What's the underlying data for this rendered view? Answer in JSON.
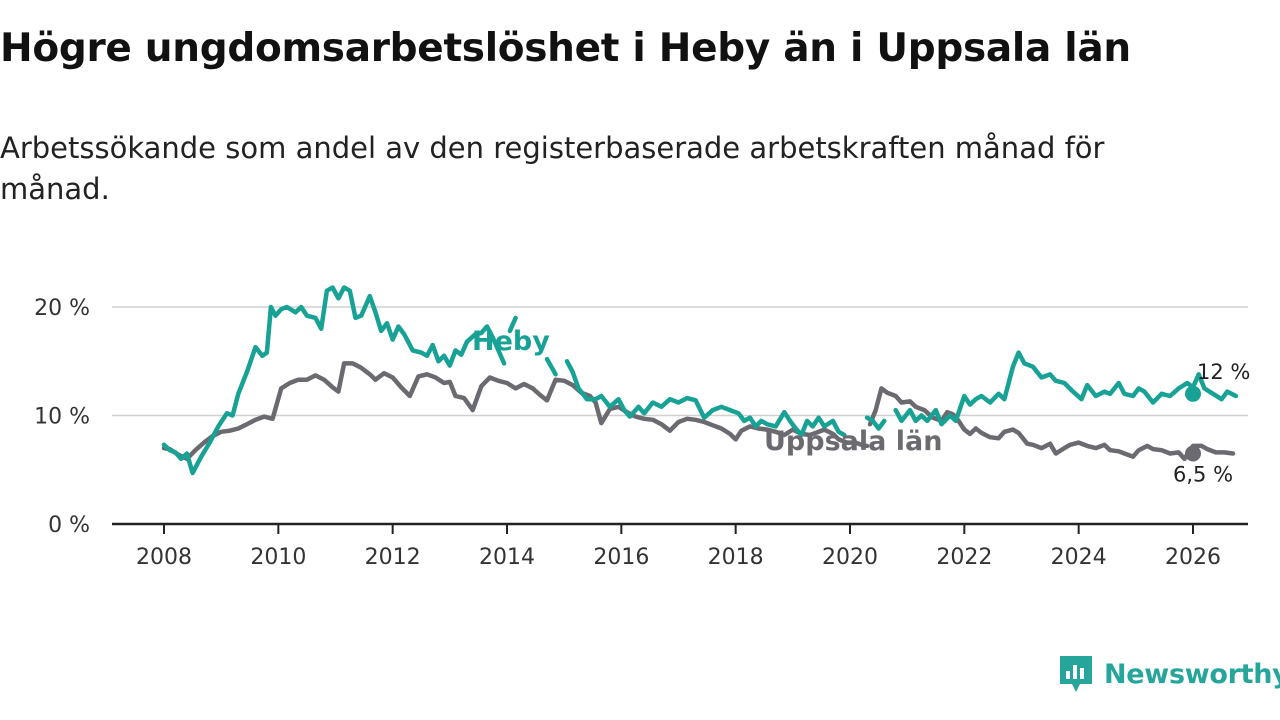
{
  "header": {
    "title": "Högre ungdomsarbetslöshet i Heby än i Uppsala län",
    "subtitle": "Arbetssökande som andel av den registerbaserade arbetskraften månad för månad."
  },
  "brand": {
    "name": "Newsworthy",
    "icon": "newsworthy-logo-icon",
    "color": "#26a69a"
  },
  "colors": {
    "heby": "#17a295",
    "uppsala": "#6b6a70",
    "grid": "#d0d0d0",
    "axis": "#222222"
  },
  "chart_data": {
    "type": "line",
    "title": "Högre ungdomsarbetslöshet i Heby än i Uppsala län",
    "xlabel": "",
    "ylabel": "",
    "ylim": [
      0,
      22
    ],
    "xlim": [
      2008,
      2026
    ],
    "x_ticks": [
      2008,
      2010,
      2012,
      2014,
      2016,
      2018,
      2020,
      2022,
      2024,
      2026
    ],
    "x_tick_labels": [
      "2008",
      "2010",
      "2012",
      "2014",
      "2016",
      "2018",
      "2020",
      "2022",
      "2024",
      "2026"
    ],
    "y_ticks": [
      0,
      10,
      20
    ],
    "y_tick_labels": [
      "0 %",
      "10 %",
      "20 %"
    ],
    "grid": true,
    "legend": "inline labels",
    "series": [
      {
        "name": "Heby",
        "label": "Heby",
        "end_label": "12 %",
        "end_value": 12.0,
        "color": "#17a295",
        "points": [
          [
            2008.0,
            7.3
          ],
          [
            2008.1,
            6.8
          ],
          [
            2008.2,
            6.6
          ],
          [
            2008.3,
            6.0
          ],
          [
            2008.4,
            6.5
          ],
          [
            2008.5,
            4.7
          ],
          [
            2008.65,
            6.2
          ],
          [
            2008.8,
            7.5
          ],
          [
            2008.95,
            9.0
          ],
          [
            2009.1,
            10.2
          ],
          [
            2009.2,
            10.0
          ],
          [
            2009.3,
            12.0
          ],
          [
            2009.45,
            14.0
          ],
          [
            2009.6,
            16.3
          ],
          [
            2009.72,
            15.5
          ],
          [
            2009.8,
            15.8
          ],
          [
            2009.87,
            20.0
          ],
          [
            2009.95,
            19.2
          ],
          [
            2010.05,
            19.8
          ],
          [
            2010.15,
            20.0
          ],
          [
            2010.3,
            19.5
          ],
          [
            2010.4,
            20.0
          ],
          [
            2010.5,
            19.2
          ],
          [
            2010.65,
            19.0
          ],
          [
            2010.75,
            18.0
          ],
          [
            2010.85,
            21.5
          ],
          [
            2010.95,
            21.8
          ],
          [
            2011.05,
            20.8
          ],
          [
            2011.15,
            21.8
          ],
          [
            2011.25,
            21.5
          ],
          [
            2011.35,
            19.0
          ],
          [
            2011.45,
            19.2
          ],
          [
            2011.6,
            21.0
          ],
          [
            2011.7,
            19.5
          ],
          [
            2011.8,
            17.8
          ],
          [
            2011.9,
            18.5
          ],
          [
            2012.0,
            17.0
          ],
          [
            2012.1,
            18.2
          ],
          [
            2012.2,
            17.5
          ],
          [
            2012.35,
            16.0
          ],
          [
            2012.5,
            15.8
          ],
          [
            2012.6,
            15.5
          ],
          [
            2012.7,
            16.5
          ],
          [
            2012.8,
            15.0
          ],
          [
            2012.9,
            15.5
          ],
          [
            2013.0,
            14.6
          ],
          [
            2013.1,
            16.0
          ],
          [
            2013.2,
            15.6
          ],
          [
            2013.3,
            16.8
          ],
          [
            2013.45,
            17.5
          ],
          [
            2013.55,
            17.6
          ],
          [
            2013.65,
            18.2
          ],
          [
            2013.75,
            17.2
          ],
          [
            2013.85,
            16.0
          ],
          [
            2013.95,
            14.8
          ],
          null,
          [
            2014.05,
            17.8
          ],
          [
            2014.15,
            19.0
          ],
          null,
          [
            2014.7,
            15.2
          ],
          [
            2014.85,
            13.8
          ],
          null,
          [
            2015.05,
            15.0
          ],
          [
            2015.15,
            14.0
          ],
          [
            2015.25,
            12.5
          ],
          [
            2015.4,
            11.5
          ],
          [
            2015.55,
            11.5
          ],
          [
            2015.65,
            11.8
          ],
          [
            2015.8,
            10.8
          ],
          [
            2015.95,
            11.5
          ],
          [
            2016.05,
            10.5
          ],
          [
            2016.15,
            9.9
          ],
          [
            2016.3,
            10.8
          ],
          [
            2016.4,
            10.2
          ],
          [
            2016.55,
            11.2
          ],
          [
            2016.7,
            10.8
          ],
          [
            2016.85,
            11.5
          ],
          [
            2017.0,
            11.2
          ],
          [
            2017.15,
            11.6
          ],
          [
            2017.3,
            11.4
          ],
          [
            2017.45,
            9.8
          ],
          [
            2017.6,
            10.5
          ],
          [
            2017.75,
            10.8
          ],
          [
            2017.9,
            10.5
          ],
          [
            2018.05,
            10.2
          ],
          [
            2018.15,
            9.5
          ],
          [
            2018.25,
            9.8
          ],
          [
            2018.35,
            9.0
          ],
          [
            2018.45,
            9.5
          ],
          [
            2018.55,
            9.2
          ],
          [
            2018.7,
            9.0
          ],
          [
            2018.85,
            10.3
          ],
          [
            2018.95,
            9.5
          ],
          [
            2019.05,
            8.8
          ],
          [
            2019.15,
            8.2
          ],
          [
            2019.25,
            9.5
          ],
          [
            2019.35,
            9.0
          ],
          [
            2019.45,
            9.8
          ],
          [
            2019.55,
            9.0
          ],
          [
            2019.7,
            9.5
          ],
          [
            2019.8,
            8.5
          ],
          [
            2019.9,
            8.2
          ],
          null,
          [
            2020.3,
            9.8
          ],
          [
            2020.4,
            9.5
          ],
          [
            2020.5,
            8.8
          ],
          [
            2020.6,
            9.5
          ],
          null,
          [
            2020.8,
            10.5
          ],
          [
            2020.9,
            9.5
          ],
          [
            2021.05,
            10.5
          ],
          [
            2021.15,
            9.5
          ],
          [
            2021.25,
            10.0
          ],
          [
            2021.35,
            9.5
          ],
          [
            2021.5,
            10.5
          ],
          [
            2021.6,
            9.2
          ],
          [
            2021.75,
            10.0
          ],
          [
            2021.85,
            9.5
          ],
          [
            2022.0,
            11.8
          ],
          [
            2022.1,
            11.0
          ],
          [
            2022.2,
            11.5
          ],
          [
            2022.3,
            11.8
          ],
          [
            2022.45,
            11.2
          ],
          [
            2022.6,
            12.0
          ],
          [
            2022.7,
            11.5
          ],
          [
            2022.85,
            14.5
          ],
          [
            2022.95,
            15.8
          ],
          [
            2023.05,
            14.8
          ],
          [
            2023.2,
            14.5
          ],
          [
            2023.35,
            13.5
          ],
          [
            2023.5,
            13.8
          ],
          [
            2023.6,
            13.2
          ],
          [
            2023.75,
            13.0
          ],
          [
            2023.9,
            12.2
          ],
          [
            2024.05,
            11.5
          ],
          [
            2024.15,
            12.8
          ],
          [
            2024.3,
            11.8
          ],
          [
            2024.45,
            12.2
          ],
          [
            2024.55,
            12.0
          ],
          [
            2024.7,
            13.0
          ],
          [
            2024.8,
            12.0
          ],
          [
            2024.95,
            11.8
          ],
          [
            2025.05,
            12.5
          ],
          [
            2025.15,
            12.2
          ],
          [
            2025.3,
            11.2
          ],
          [
            2025.45,
            12.0
          ],
          [
            2025.6,
            11.8
          ],
          [
            2025.75,
            12.5
          ],
          [
            2025.9,
            13.0
          ],
          [
            2026.0,
            12.6
          ],
          [
            2026.1,
            13.8
          ],
          [
            2026.2,
            12.5
          ],
          [
            2026.35,
            12.0
          ],
          [
            2026.5,
            11.5
          ],
          [
            2026.6,
            12.2
          ],
          [
            2026.75,
            11.8
          ]
        ]
      },
      {
        "name": "Uppsala län",
        "label": "Uppsala län",
        "end_label": "6,5 %",
        "end_value": 6.5,
        "color": "#6b6a70",
        "points": [
          [
            2008.0,
            7.0
          ],
          [
            2008.1,
            6.9
          ],
          [
            2008.25,
            6.4
          ],
          [
            2008.4,
            6.0
          ],
          [
            2008.55,
            6.8
          ],
          [
            2008.7,
            7.5
          ],
          [
            2008.85,
            8.1
          ],
          [
            2009.0,
            8.5
          ],
          [
            2009.15,
            8.6
          ],
          [
            2009.3,
            8.8
          ],
          [
            2009.45,
            9.2
          ],
          [
            2009.6,
            9.6
          ],
          [
            2009.75,
            9.9
          ],
          [
            2009.9,
            9.7
          ],
          [
            2010.05,
            12.5
          ],
          [
            2010.2,
            13.0
          ],
          [
            2010.35,
            13.3
          ],
          [
            2010.5,
            13.3
          ],
          [
            2010.65,
            13.7
          ],
          [
            2010.8,
            13.3
          ],
          [
            2010.95,
            12.6
          ],
          [
            2011.05,
            12.2
          ],
          [
            2011.15,
            14.8
          ],
          [
            2011.3,
            14.8
          ],
          [
            2011.45,
            14.4
          ],
          [
            2011.6,
            13.8
          ],
          [
            2011.7,
            13.3
          ],
          [
            2011.85,
            13.9
          ],
          [
            2012.0,
            13.5
          ],
          [
            2012.15,
            12.6
          ],
          [
            2012.3,
            11.8
          ],
          [
            2012.45,
            13.6
          ],
          [
            2012.6,
            13.8
          ],
          [
            2012.75,
            13.5
          ],
          [
            2012.9,
            13.0
          ],
          [
            2013.0,
            13.1
          ],
          [
            2013.1,
            11.8
          ],
          [
            2013.25,
            11.6
          ],
          [
            2013.4,
            10.5
          ],
          [
            2013.55,
            12.7
          ],
          [
            2013.7,
            13.5
          ],
          [
            2013.85,
            13.2
          ],
          [
            2014.0,
            13.0
          ],
          [
            2014.15,
            12.5
          ],
          [
            2014.3,
            12.9
          ],
          [
            2014.45,
            12.5
          ],
          [
            2014.6,
            11.8
          ],
          [
            2014.7,
            11.4
          ],
          [
            2014.85,
            13.3
          ],
          [
            2015.0,
            13.2
          ],
          [
            2015.15,
            12.8
          ],
          [
            2015.3,
            12.1
          ],
          [
            2015.45,
            11.8
          ],
          [
            2015.55,
            11.2
          ],
          [
            2015.65,
            9.3
          ],
          [
            2015.8,
            10.6
          ],
          [
            2015.95,
            10.8
          ],
          [
            2016.1,
            10.3
          ],
          [
            2016.25,
            9.9
          ],
          [
            2016.4,
            9.7
          ],
          [
            2016.55,
            9.6
          ],
          [
            2016.7,
            9.2
          ],
          [
            2016.85,
            8.6
          ],
          [
            2017.0,
            9.4
          ],
          [
            2017.15,
            9.7
          ],
          [
            2017.3,
            9.6
          ],
          [
            2017.45,
            9.4
          ],
          [
            2017.6,
            9.1
          ],
          [
            2017.75,
            8.8
          ],
          [
            2017.9,
            8.3
          ],
          [
            2018.0,
            7.8
          ],
          [
            2018.1,
            8.6
          ],
          [
            2018.25,
            9.0
          ],
          [
            2018.4,
            8.8
          ],
          [
            2018.55,
            8.7
          ],
          [
            2018.7,
            8.5
          ],
          [
            2018.85,
            8.2
          ],
          [
            2019.0,
            8.7
          ],
          [
            2019.15,
            8.3
          ],
          [
            2019.3,
            8.2
          ],
          [
            2019.45,
            8.5
          ],
          [
            2019.55,
            8.7
          ],
          [
            2019.7,
            8.3
          ],
          [
            2019.8,
            7.8
          ],
          [
            2019.95,
            7.5
          ],
          [
            2020.1,
            7.5
          ],
          [
            2020.2,
            7.3
          ],
          [
            2020.3,
            7.2
          ],
          null,
          [
            2020.35,
            9.2
          ],
          [
            2020.45,
            10.5
          ],
          [
            2020.55,
            12.5
          ],
          [
            2020.65,
            12.1
          ],
          [
            2020.8,
            11.8
          ],
          [
            2020.9,
            11.2
          ],
          [
            2021.05,
            11.3
          ],
          [
            2021.15,
            10.8
          ],
          [
            2021.3,
            10.5
          ],
          [
            2021.45,
            9.8
          ],
          [
            2021.6,
            9.5
          ],
          [
            2021.7,
            10.3
          ],
          [
            2021.8,
            10.1
          ],
          [
            2021.9,
            9.5
          ],
          [
            2022.0,
            8.7
          ],
          [
            2022.1,
            8.3
          ],
          [
            2022.2,
            8.8
          ],
          [
            2022.3,
            8.4
          ],
          [
            2022.45,
            8.0
          ],
          [
            2022.6,
            7.9
          ],
          [
            2022.7,
            8.5
          ],
          [
            2022.85,
            8.7
          ],
          [
            2022.95,
            8.4
          ],
          [
            2023.1,
            7.4
          ],
          [
            2023.2,
            7.3
          ],
          [
            2023.35,
            7.0
          ],
          [
            2023.5,
            7.4
          ],
          [
            2023.6,
            6.5
          ],
          [
            2023.75,
            7.0
          ],
          [
            2023.85,
            7.3
          ],
          [
            2024.0,
            7.5
          ],
          [
            2024.15,
            7.2
          ],
          [
            2024.3,
            7.0
          ],
          [
            2024.45,
            7.3
          ],
          [
            2024.55,
            6.8
          ],
          [
            2024.7,
            6.7
          ],
          [
            2024.8,
            6.5
          ],
          [
            2024.95,
            6.2
          ],
          [
            2025.05,
            6.8
          ],
          [
            2025.2,
            7.2
          ],
          [
            2025.3,
            6.9
          ],
          [
            2025.45,
            6.8
          ],
          [
            2025.6,
            6.5
          ],
          [
            2025.75,
            6.6
          ],
          [
            2025.85,
            6.0
          ],
          [
            2026.0,
            7.2
          ],
          [
            2026.15,
            7.2
          ],
          [
            2026.25,
            6.9
          ],
          [
            2026.4,
            6.6
          ],
          [
            2026.55,
            6.6
          ],
          [
            2026.7,
            6.5
          ]
        ]
      }
    ]
  }
}
